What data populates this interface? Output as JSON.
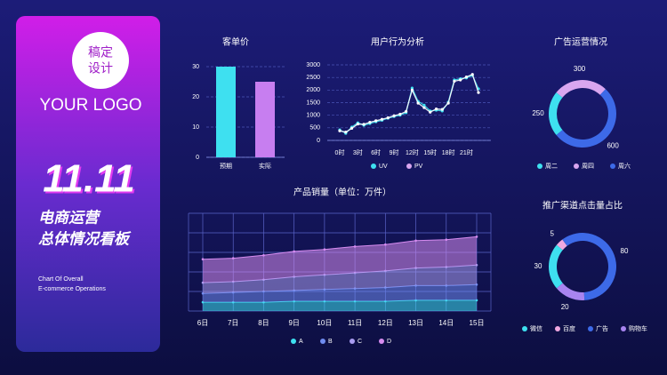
{
  "logo": {
    "mark": [
      "稿定",
      "设计"
    ],
    "text": "YOUR LOGO"
  },
  "headline": "11.11",
  "subtitle": [
    "电商运营",
    "总体情况看板"
  ],
  "description": [
    "Chart Of Overall",
    "E-commerce Operations"
  ],
  "chart_data": [
    {
      "type": "bar",
      "title": "客单价",
      "categories": [
        "预期",
        "实际"
      ],
      "values": [
        30,
        25
      ],
      "colors": [
        "#3ee0f0",
        "#c77ef0"
      ],
      "ylim": [
        0,
        30
      ],
      "yticks": [
        0,
        10,
        20,
        30
      ],
      "grid": true
    },
    {
      "type": "line",
      "title": "用户行为分析",
      "categories": [
        "0时",
        null,
        null,
        "3时",
        null,
        null,
        "6时",
        null,
        null,
        "9时",
        null,
        null,
        "12时",
        null,
        null,
        "15时",
        null,
        null,
        "18时",
        null,
        null,
        "21时",
        null,
        null
      ],
      "series": [
        {
          "name": "UV",
          "color": "#3ee0f0",
          "values": [
            420,
            280,
            530,
            700,
            600,
            670,
            740,
            800,
            880,
            950,
            1000,
            1100,
            2080,
            1550,
            1400,
            1170,
            1200,
            1170,
            1520,
            2400,
            2450,
            2480,
            2580,
            2050
          ]
        },
        {
          "name": "PV",
          "color": "#d9a6f0",
          "values": [
            380,
            330,
            480,
            650,
            640,
            720,
            780,
            840,
            900,
            980,
            1040,
            1150,
            2000,
            1480,
            1300,
            1120,
            1250,
            1230,
            1480,
            2350,
            2400,
            2520,
            2620,
            1900
          ]
        }
      ],
      "ylim": [
        0,
        3000
      ],
      "yticks": [
        0,
        500,
        1000,
        1500,
        2000,
        2500,
        3000
      ],
      "grid": true
    },
    {
      "type": "donut",
      "title": "广告运营情况",
      "categories": [
        "周二",
        "周四",
        "周六"
      ],
      "values": [
        250,
        300,
        600
      ],
      "colors": [
        "#3ee0f0",
        "#d9a6f0",
        "#3d6ae8"
      ]
    },
    {
      "type": "donut",
      "title": "推广渠道点击量占比",
      "categories": [
        "微信",
        "百度",
        "广告",
        "购物车"
      ],
      "values": [
        30,
        5,
        80,
        20
      ],
      "colors": [
        "#3ee0f0",
        "#f0a8e0",
        "#3d6ae8",
        "#a884f0"
      ]
    },
    {
      "type": "area",
      "title": "产品销量（单位：万件）",
      "categories": [
        "6日",
        "7日",
        "8日",
        "9日",
        "10日",
        "11日",
        "12日",
        "13日",
        "14日",
        "15日"
      ],
      "series": [
        {
          "name": "A",
          "color": "#3ee0f0",
          "values": [
            9,
            9,
            9,
            10,
            10,
            10,
            10,
            11,
            11,
            11
          ]
        },
        {
          "name": "B",
          "color": "#6f8cf0",
          "values": [
            9,
            10,
            11,
            11,
            12,
            13,
            14,
            15,
            15,
            16
          ]
        },
        {
          "name": "C",
          "color": "#a99cf0",
          "values": [
            11,
            11,
            12,
            14,
            15,
            16,
            17,
            18,
            19,
            20
          ]
        },
        {
          "name": "D",
          "color": "#d78cf0",
          "values": [
            24,
            24,
            25,
            26,
            26,
            27,
            27,
            28,
            28,
            29
          ]
        }
      ],
      "stacked": true,
      "ylim": [
        0,
        100
      ],
      "grid": true
    }
  ]
}
